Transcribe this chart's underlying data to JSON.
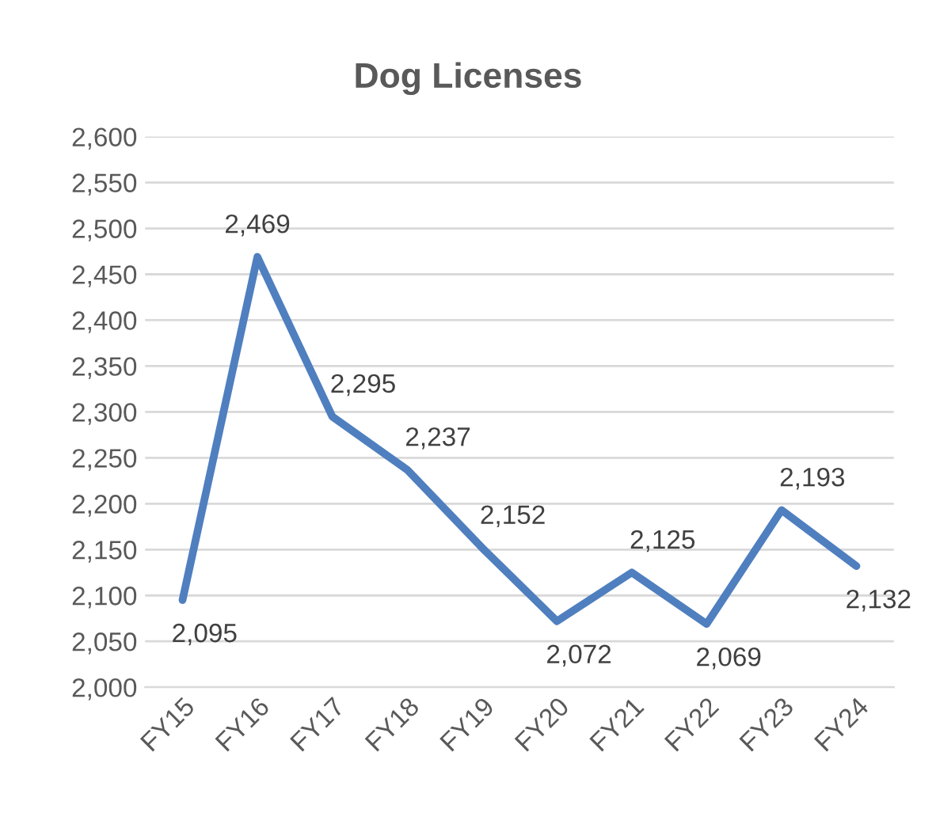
{
  "chart_data": {
    "type": "line",
    "title": "Dog Licenses",
    "categories": [
      "FY15",
      "FY16",
      "FY17",
      "FY18",
      "FY19",
      "FY20",
      "FY21",
      "FY22",
      "FY23",
      "FY24"
    ],
    "series": [
      {
        "color": "#4f7fbf",
        "values": [
          2095,
          2469,
          2295,
          2237,
          2152,
          2072,
          2125,
          2069,
          2193,
          2132
        ],
        "value_labels": [
          "2,095",
          "2,469",
          "2,295",
          "2,237",
          "2,152",
          "2,072",
          "2,125",
          "2,069",
          "2,193",
          "2,132"
        ]
      }
    ],
    "ylim": [
      2000,
      2600
    ],
    "yticks": [
      {
        "value": 2000,
        "label": "2,000"
      },
      {
        "value": 2050,
        "label": "2,050"
      },
      {
        "value": 2100,
        "label": "2,100"
      },
      {
        "value": 2150,
        "label": "2,150"
      },
      {
        "value": 2200,
        "label": "2,200"
      },
      {
        "value": 2250,
        "label": "2,250"
      },
      {
        "value": 2300,
        "label": "2,300"
      },
      {
        "value": 2350,
        "label": "2,350"
      },
      {
        "value": 2400,
        "label": "2,400"
      },
      {
        "value": 2450,
        "label": "2,450"
      },
      {
        "value": 2500,
        "label": "2,500"
      },
      {
        "value": 2550,
        "label": "2,550"
      },
      {
        "value": 2600,
        "label": "2,600"
      }
    ],
    "grid": "y",
    "legend": false,
    "marker": "none",
    "line_style": "solid"
  }
}
